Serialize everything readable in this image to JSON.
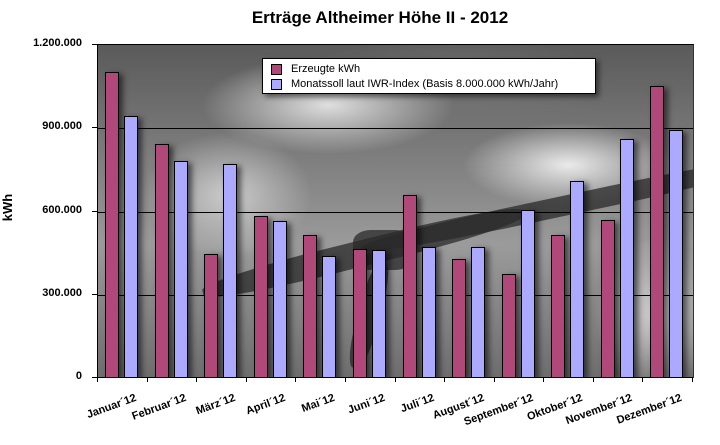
{
  "chart_data": {
    "type": "bar",
    "title": "Erträge Altheimer Höhe II - 2012",
    "xlabel": "",
    "ylabel": "kWh",
    "ylim": [
      0,
      1200000
    ],
    "yticks": [
      "0",
      "300.000",
      "600.000",
      "900.000",
      "1.200.000"
    ],
    "ytick_values": [
      0,
      300000,
      600000,
      900000,
      1200000
    ],
    "grid": true,
    "legend_position": "top-center inside plot",
    "categories": [
      "Januar´12",
      "Februar´12",
      "März´12",
      "April´12",
      "Mai´12",
      "Juni´12",
      "Juli´12",
      "August´12",
      "September´12",
      "Oktober´12",
      "November´12",
      "Dezember´12"
    ],
    "series": [
      {
        "name": "Erzeugte kWh",
        "color": "#b0497a",
        "values": [
          1103000,
          843000,
          447000,
          584000,
          515000,
          465000,
          660000,
          429000,
          375000,
          515000,
          569000,
          1052000
        ]
      },
      {
        "name": "Monatssoll laut IWR-Index (Basis 8.000.000 kWh/Jahr)",
        "color": "#abaaff",
        "values": [
          945000,
          782000,
          771000,
          566000,
          440000,
          461000,
          472000,
          472000,
          605000,
          710000,
          861000,
          894000
        ]
      }
    ]
  }
}
